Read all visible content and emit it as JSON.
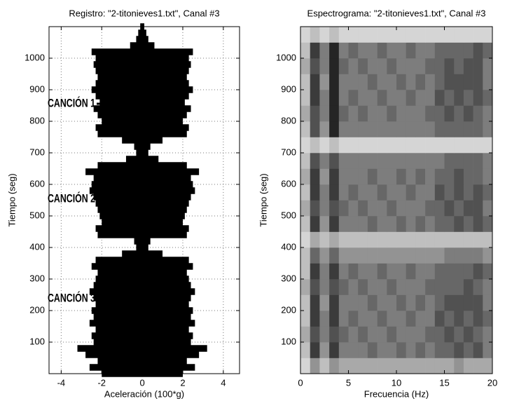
{
  "chart_data": [
    {
      "type": "envelope",
      "title": "Registro: \"2-titonieves1.txt\", Canal #3",
      "xlabel": "Aceleración (100*g)",
      "ylabel": "Tiempo (seg)",
      "y": [
        0,
        20,
        40,
        60,
        80,
        100,
        120,
        140,
        160,
        180,
        200,
        220,
        240,
        260,
        280,
        300,
        320,
        340,
        360,
        380,
        400,
        420,
        440,
        460,
        480,
        500,
        520,
        540,
        560,
        580,
        600,
        620,
        640,
        660,
        680,
        700,
        720,
        740,
        760,
        780,
        800,
        820,
        840,
        860,
        880,
        900,
        920,
        940,
        960,
        980,
        1000,
        1020,
        1040,
        1060,
        1080,
        1100
      ],
      "values": [
        2.0,
        2.6,
        2.2,
        2.8,
        3.2,
        2.4,
        2.5,
        2.3,
        2.6,
        2.4,
        2.5,
        2.3,
        2.4,
        2.6,
        2.4,
        2.3,
        2.2,
        2.5,
        2.3,
        1.0,
        0.3,
        0.4,
        2.2,
        2.3,
        2.0,
        2.1,
        2.2,
        2.3,
        2.4,
        2.6,
        2.5,
        2.4,
        2.8,
        2.2,
        0.8,
        0.3,
        0.4,
        1.0,
        2.2,
        2.3,
        2.0,
        2.2,
        2.4,
        2.1,
        2.3,
        2.5,
        2.3,
        2.2,
        2.3,
        2.4,
        2.3,
        2.5,
        0.6,
        0.3,
        0.2,
        0.1
      ],
      "color": "#000000",
      "xlim": [
        -4.6,
        4.8
      ],
      "xticks": [
        -4,
        -2,
        0,
        2,
        4
      ],
      "ylim": [
        0,
        1100
      ],
      "yticks": [
        100,
        200,
        300,
        400,
        500,
        600,
        700,
        800,
        900,
        1000
      ],
      "grid": true,
      "annotations": [
        "CANCIÓN 1",
        "CANCIÓN 2",
        "CANCIÓN 3"
      ]
    },
    {
      "type": "heatmap",
      "title": "Espectrograma: \"2-titonieves1.txt\", Canal #3",
      "xlabel": "Frecuencia (Hz)",
      "ylabel": "Tiempo (seg)",
      "xbins": [
        0,
        1,
        2,
        3,
        4,
        5,
        6,
        7,
        8,
        9,
        10,
        11,
        12,
        13,
        14,
        15,
        16,
        17,
        18,
        19,
        20
      ],
      "ybins": [
        0,
        50,
        100,
        150,
        200,
        250,
        300,
        350,
        400,
        450,
        500,
        550,
        600,
        650,
        700,
        750,
        800,
        850,
        900,
        950,
        1000,
        1050,
        1100
      ],
      "z": [
        [
          1,
          4,
          2,
          4,
          3,
          3,
          3,
          3,
          3,
          3,
          3,
          3,
          3,
          3,
          3,
          3,
          4,
          3,
          3,
          3
        ],
        [
          2,
          8,
          4,
          8,
          5,
          5,
          5,
          6,
          5,
          5,
          6,
          5,
          6,
          5,
          6,
          6,
          7,
          6,
          7,
          5
        ],
        [
          3,
          7,
          5,
          7,
          6,
          5,
          6,
          5,
          5,
          6,
          5,
          5,
          5,
          6,
          6,
          7,
          6,
          7,
          6,
          5
        ],
        [
          2,
          8,
          5,
          8,
          5,
          6,
          5,
          5,
          6,
          5,
          5,
          6,
          5,
          5,
          7,
          6,
          7,
          6,
          7,
          6
        ],
        [
          2,
          8,
          4,
          8,
          5,
          5,
          5,
          6,
          5,
          5,
          6,
          5,
          6,
          5,
          6,
          7,
          7,
          7,
          7,
          5
        ],
        [
          3,
          7,
          5,
          7,
          6,
          5,
          6,
          5,
          5,
          6,
          5,
          5,
          5,
          6,
          6,
          6,
          6,
          7,
          6,
          5
        ],
        [
          2,
          8,
          5,
          8,
          5,
          6,
          5,
          5,
          6,
          5,
          5,
          6,
          5,
          5,
          6,
          6,
          6,
          6,
          7,
          6
        ],
        [
          2,
          6,
          4,
          6,
          4,
          4,
          4,
          4,
          4,
          4,
          4,
          4,
          4,
          4,
          4,
          5,
          5,
          5,
          5,
          4
        ],
        [
          1,
          3,
          2,
          3,
          2,
          2,
          2,
          2,
          2,
          2,
          2,
          2,
          2,
          2,
          2,
          2,
          2,
          2,
          2,
          2
        ],
        [
          2,
          8,
          4,
          8,
          5,
          5,
          5,
          6,
          5,
          5,
          6,
          5,
          6,
          5,
          6,
          6,
          7,
          6,
          7,
          6
        ],
        [
          3,
          7,
          5,
          7,
          6,
          5,
          6,
          5,
          5,
          6,
          5,
          5,
          5,
          6,
          6,
          7,
          6,
          7,
          7,
          5
        ],
        [
          2,
          8,
          5,
          8,
          5,
          6,
          5,
          5,
          6,
          5,
          5,
          6,
          5,
          5,
          7,
          6,
          7,
          6,
          7,
          6
        ],
        [
          3,
          8,
          4,
          8,
          5,
          5,
          5,
          6,
          5,
          5,
          6,
          5,
          6,
          5,
          6,
          6,
          7,
          6,
          6,
          5
        ],
        [
          2,
          7,
          5,
          7,
          5,
          5,
          5,
          5,
          5,
          5,
          5,
          5,
          5,
          5,
          5,
          6,
          6,
          6,
          6,
          5
        ],
        [
          1,
          2,
          1,
          2,
          1,
          1,
          1,
          1,
          1,
          1,
          1,
          1,
          1,
          1,
          1,
          1,
          1,
          1,
          1,
          1
        ],
        [
          2,
          7,
          4,
          9,
          5,
          5,
          5,
          5,
          5,
          5,
          5,
          5,
          5,
          5,
          6,
          6,
          6,
          6,
          6,
          5
        ],
        [
          3,
          7,
          5,
          9,
          6,
          5,
          6,
          5,
          5,
          6,
          5,
          5,
          5,
          6,
          6,
          7,
          6,
          7,
          6,
          5
        ],
        [
          2,
          8,
          5,
          9,
          5,
          6,
          5,
          5,
          6,
          5,
          5,
          6,
          5,
          5,
          7,
          6,
          7,
          6,
          7,
          6
        ],
        [
          2,
          8,
          4,
          9,
          5,
          5,
          5,
          6,
          5,
          5,
          6,
          5,
          6,
          5,
          6,
          7,
          7,
          7,
          7,
          5
        ],
        [
          3,
          7,
          5,
          9,
          6,
          5,
          6,
          5,
          5,
          6,
          5,
          5,
          5,
          6,
          6,
          7,
          6,
          7,
          7,
          5
        ],
        [
          2,
          8,
          5,
          9,
          5,
          6,
          5,
          5,
          6,
          5,
          5,
          6,
          5,
          5,
          6,
          6,
          6,
          6,
          7,
          6
        ],
        [
          1,
          2,
          1,
          2,
          1,
          1,
          1,
          1,
          1,
          1,
          1,
          1,
          1,
          1,
          1,
          1,
          1,
          1,
          1,
          1
        ]
      ],
      "colormap": "gray-reversed",
      "xlim": [
        0,
        20
      ],
      "xticks": [
        0,
        5,
        10,
        15,
        20
      ],
      "ylim": [
        0,
        1100
      ],
      "yticks": [
        100,
        200,
        300,
        400,
        500,
        600,
        700,
        800,
        900,
        1000
      ],
      "grid": false
    }
  ]
}
